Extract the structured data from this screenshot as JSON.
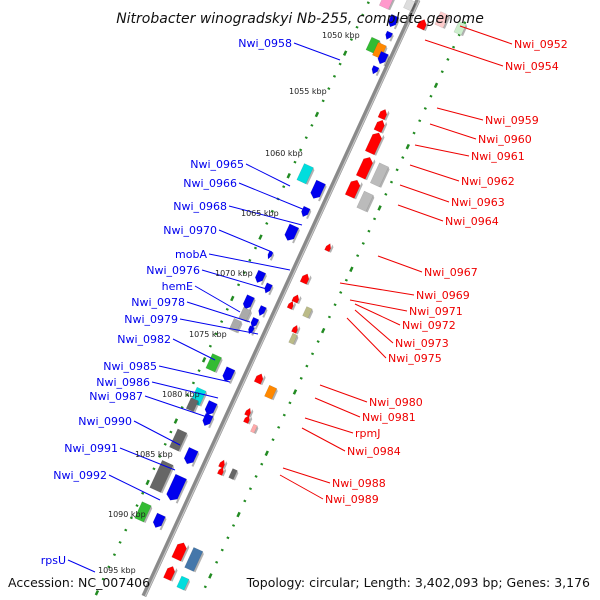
{
  "title": "Nitrobacter winogradskyi Nb-255, complete genome",
  "footer": {
    "accession": "Accession: NC_007406",
    "summary": "Topology: circular; Length: 3,402,093 bp; Genes: 3,176"
  },
  "colors": {
    "forward_label": "#0000ee",
    "reverse_label": "#ee0000",
    "backbone": "#888888",
    "track_dots": "#228b22"
  },
  "kbp_ticks": [
    "1050 kbp",
    "1055 kbp",
    "1060 kbp",
    "1065 kbp",
    "1070 kbp",
    "1075 kbp",
    "1080 kbp",
    "1085 kbp",
    "1090 kbp",
    "1095 kbp"
  ],
  "left_labels": [
    "Nwi_0958",
    "Nwi_0965",
    "Nwi_0966",
    "Nwi_0968",
    "Nwi_0970",
    "mobA",
    "Nwi_0976",
    "hemE",
    "Nwi_0978",
    "Nwi_0979",
    "Nwi_0982",
    "Nwi_0985",
    "Nwi_0986",
    "Nwi_0987",
    "Nwi_0990",
    "Nwi_0991",
    "Nwi_0992",
    "rpsU"
  ],
  "right_labels": [
    "Nwi_0952",
    "Nwi_0954",
    "Nwi_0959",
    "Nwi_0960",
    "Nwi_0961",
    "Nwi_0962",
    "Nwi_0963",
    "Nwi_0964",
    "Nwi_0967",
    "Nwi_0969",
    "Nwi_0971",
    "Nwi_0972",
    "Nwi_0973",
    "Nwi_0975",
    "Nwi_0980",
    "Nwi_0981",
    "rpmJ",
    "Nwi_0984",
    "Nwi_0988",
    "Nwi_0989"
  ]
}
